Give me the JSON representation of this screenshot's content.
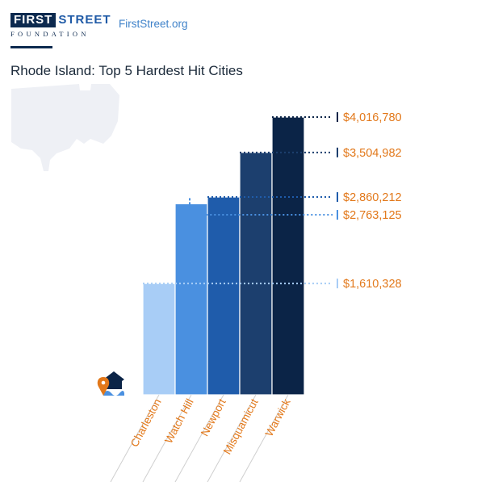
{
  "brand": {
    "logo_first": "FIRST",
    "logo_street": "STREET",
    "logo_foundation": "FOUNDATION",
    "site_link": "FirstStreet.org"
  },
  "colors": {
    "navy": "#0d2a4f",
    "accent_orange": "#e2781a",
    "link_blue": "#3f82c9",
    "state_shape": "#eef0f5"
  },
  "icons": {
    "state_background": "rhode-island-map-icon",
    "flood_icon": "house-flood-pin-icon"
  },
  "chart_data": {
    "type": "bar",
    "title": "Rhode Island: Top 5 Hardest Hit Cities",
    "categories": [
      "Charleston",
      "Watch Hill",
      "Newport",
      "Misquamicut",
      "Warwick"
    ],
    "values": [
      1610328,
      2763125,
      2860212,
      3504982,
      4016780
    ],
    "value_labels": [
      "$1,610,328",
      "$2,763,125",
      "$2,860,212",
      "$3,504,982",
      "$4,016,780"
    ],
    "colors": [
      "#a8cdf6",
      "#4a90e0",
      "#1f5cab",
      "#1c3f6e",
      "#0b2447"
    ],
    "ylim": [
      0,
      4016780
    ],
    "grid": false,
    "legend": false
  }
}
